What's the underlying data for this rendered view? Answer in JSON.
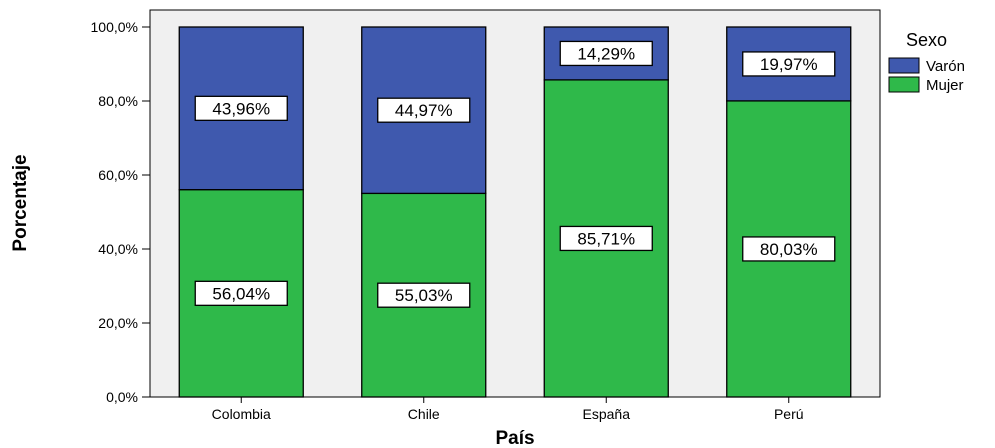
{
  "chart_data": {
    "type": "bar",
    "stacked": true,
    "categories": [
      "Colombia",
      "Chile",
      "España",
      "Perú"
    ],
    "series": [
      {
        "name": "Mujer",
        "values": [
          56.04,
          55.03,
          85.71,
          80.03
        ],
        "labels": [
          "56,04%",
          "55,03%",
          "85,71%",
          "80,03%"
        ],
        "color": "#2fb94a"
      },
      {
        "name": "Varón",
        "values": [
          43.96,
          44.97,
          14.29,
          19.97
        ],
        "labels": [
          "43,96%",
          "44,97%",
          "14,29%",
          "19,97%"
        ],
        "color": "#3f59ae"
      }
    ],
    "xlabel": "País",
    "ylabel": "Porcentaje",
    "ylim": [
      0,
      100
    ],
    "yticks": [
      0,
      20,
      40,
      60,
      80,
      100
    ],
    "ytick_labels": [
      "0,0%",
      "20,0%",
      "40,0%",
      "60,0%",
      "80,0%",
      "100,0%"
    ],
    "legend": {
      "title": "Sexo",
      "placement": "top-right",
      "entries": [
        "Varón",
        "Mujer"
      ]
    },
    "plot_background": "#f0f0f0",
    "grid": false
  }
}
